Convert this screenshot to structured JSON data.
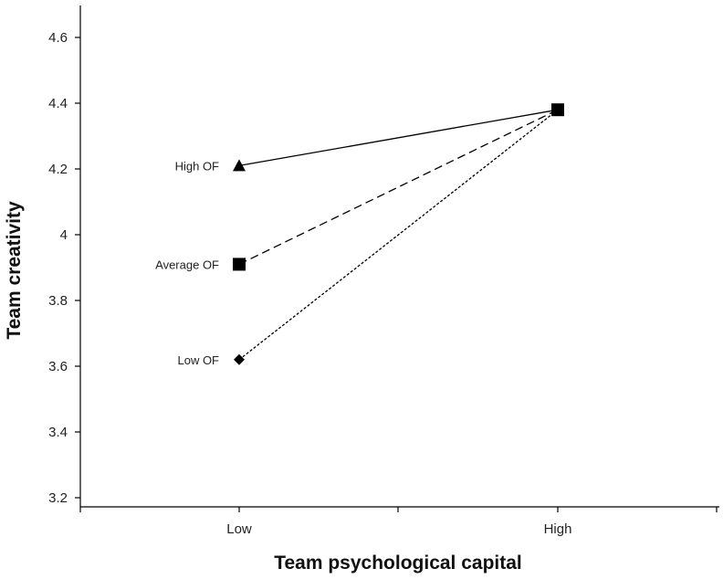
{
  "chart_data": {
    "type": "line",
    "xlabel": "Team psychological capital",
    "ylabel": "Team creativity",
    "categories": [
      "Low",
      "High"
    ],
    "ylim": [
      3.2,
      4.7
    ],
    "yticks": [
      "3.2",
      "3.4",
      "3.6",
      "3.8",
      "4",
      "4.2",
      "4.4",
      "4.6"
    ],
    "ytick_values": [
      3.2,
      3.4,
      3.6,
      3.8,
      4.0,
      4.2,
      4.4,
      4.6
    ],
    "grid": false,
    "legend": "none",
    "series": [
      {
        "name": "High OF",
        "values": [
          4.21,
          4.38
        ],
        "marker": "triangle",
        "dash": "solid",
        "color": "#000000"
      },
      {
        "name": "Average OF",
        "values": [
          3.91,
          4.38
        ],
        "marker": "square",
        "dash": "dashed",
        "color": "#000000"
      },
      {
        "name": "Low OF",
        "values": [
          3.62,
          4.38
        ],
        "marker": "diamond",
        "dash": "dotted",
        "color": "#000000"
      }
    ]
  }
}
